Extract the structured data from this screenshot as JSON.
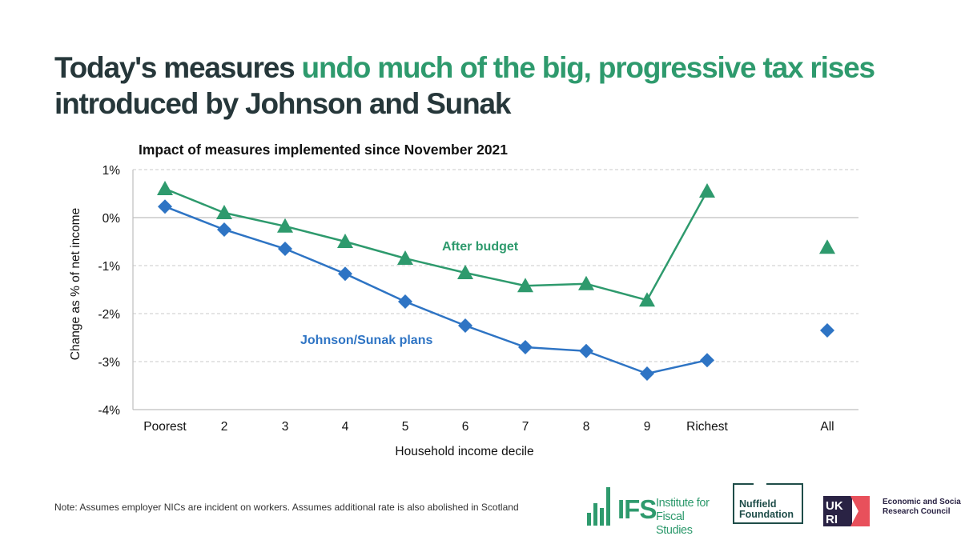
{
  "headline": {
    "part1": "Today's measures ",
    "highlight": "undo much of the big, progressive tax rises",
    "part2": " introduced by Johnson and Sunak"
  },
  "note": "Note: Assumes employer NICs are incident on workers. Assumes additional rate is also abolished in Scotland",
  "logos": {
    "ifs_acronym": "IFS",
    "ifs_name": "Institute for Fiscal Studies",
    "nuffield": "Nuffield Foundation",
    "ukri_mark": "UKRI",
    "esrc": "Economic and Social Research Council"
  },
  "colors": {
    "after_budget": "#2e9a6d",
    "johnson_sunak": "#2e74c4",
    "headline": "#26373a"
  },
  "chart_data": {
    "type": "line",
    "title": "Impact of measures implemented since November 2021",
    "xlabel": "Household income decile",
    "ylabel": "Change as % of net income",
    "categories": [
      "Poorest",
      "2",
      "3",
      "4",
      "5",
      "6",
      "7",
      "8",
      "9",
      "Richest",
      "All"
    ],
    "ylim": [
      -4,
      1
    ],
    "yticks": [
      "1%",
      "0%",
      "-1%",
      "-2%",
      "-3%",
      "-4%"
    ],
    "grid": true,
    "series": [
      {
        "name": "After budget",
        "marker": "triangle",
        "color": "#2e9a6d",
        "values": [
          0.6,
          0.1,
          -0.18,
          -0.5,
          -0.85,
          -1.15,
          -1.42,
          -1.38,
          -1.72,
          0.55,
          -0.62
        ],
        "connect_last": false
      },
      {
        "name": "Johnson/Sunak plans",
        "marker": "diamond",
        "color": "#2e74c4",
        "values": [
          0.23,
          -0.25,
          -0.65,
          -1.17,
          -1.75,
          -2.25,
          -2.7,
          -2.78,
          -3.25,
          -2.97,
          -2.35
        ],
        "connect_last": false
      }
    ]
  }
}
